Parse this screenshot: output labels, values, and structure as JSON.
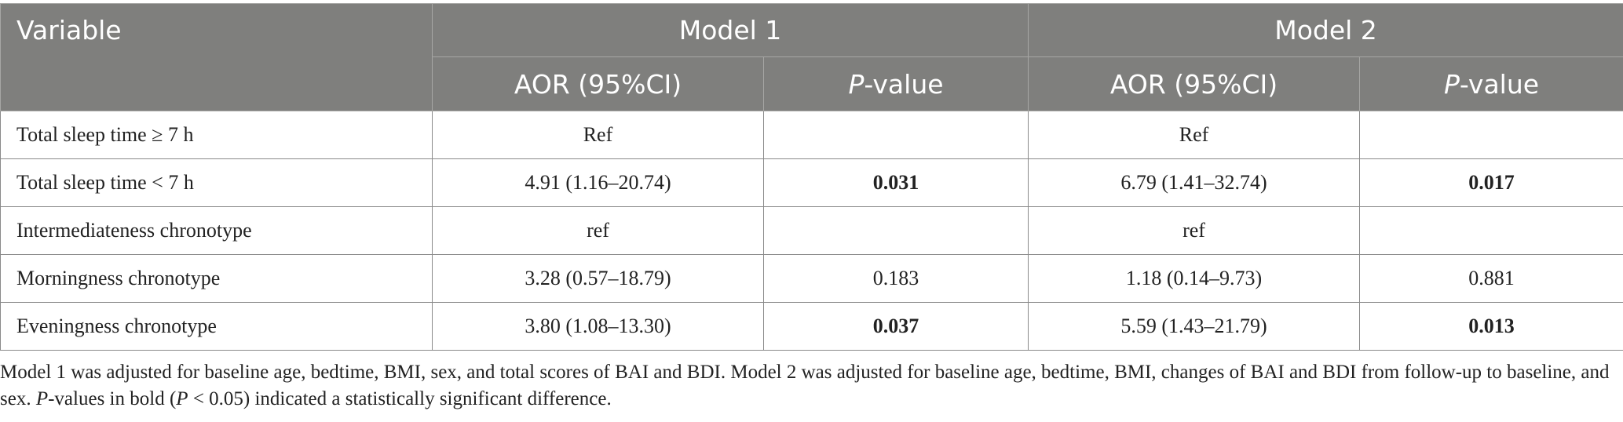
{
  "header": {
    "variable": "Variable",
    "model1": "Model 1",
    "model2": "Model 2",
    "aor": "AOR (95%CI)",
    "p_italic": "P",
    "p_rest": "-value"
  },
  "rows": [
    {
      "label": "Total sleep time ≥ 7 h",
      "m1_aor": "Ref",
      "m1_p": "",
      "m2_aor": "Ref",
      "m2_p": ""
    },
    {
      "label": "Total sleep time < 7 h",
      "m1_aor": "4.91 (1.16–20.74)",
      "m1_p": "0.031",
      "m2_aor": "6.79 (1.41–32.74)",
      "m2_p": "0.017"
    },
    {
      "label": "Intermediateness chronotype",
      "m1_aor": "ref",
      "m1_p": "",
      "m2_aor": "ref",
      "m2_p": ""
    },
    {
      "label": "Morningness chronotype",
      "m1_aor": "3.28 (0.57–18.79)",
      "m1_p": "0.183",
      "m2_aor": "1.18 (0.14–9.73)",
      "m2_p": "0.881"
    },
    {
      "label": "Eveningness chronotype",
      "m1_aor": "3.80 (1.08–13.30)",
      "m1_p": "0.037",
      "m2_aor": "5.59 (1.43–21.79)",
      "m2_p": "0.013"
    }
  ],
  "footnote": {
    "part1": "Model 1 was adjusted for baseline age, bedtime, BMI, sex, and total scores of BAI and BDI. Model 2 was adjusted for baseline age, bedtime, BMI, changes of BAI and BDI from follow-up to baseline, and sex. ",
    "p1": "P",
    "part2": "-values in bold (",
    "p2": "P",
    "part3": " < 0.05) indicated a statistically significant difference."
  }
}
